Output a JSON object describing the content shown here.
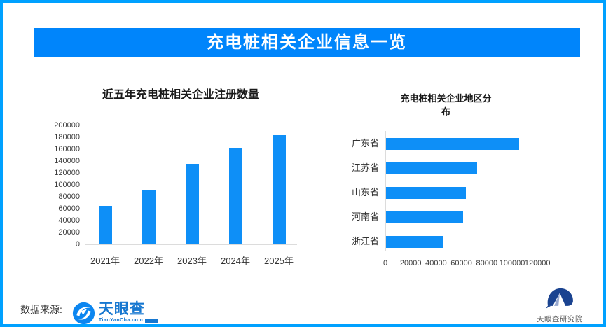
{
  "page": {
    "title": "充电桩相关企业信息一览"
  },
  "colors": {
    "border": "#00A1FF",
    "banner": "#0085FB",
    "bar": "#0E8FF7",
    "axis": "#DCDCDC",
    "tyc_blue": "#1677D0",
    "tyc_circle_blue": "#0C86F0",
    "institute_navy": "#1A4390"
  },
  "chart_data": [
    {
      "type": "bar",
      "orientation": "vertical",
      "title": "近五年充电桩相关企业注册数量",
      "categories": [
        "2021年",
        "2022年",
        "2023年",
        "2024年",
        "2025年"
      ],
      "values": [
        65000,
        90000,
        135000,
        161000,
        184000
      ],
      "ylim": [
        0,
        200000
      ],
      "ytick_step": 20000,
      "grid": false,
      "legend": "none"
    },
    {
      "type": "bar",
      "orientation": "horizontal",
      "title": "充电桩相关企业地区分布",
      "categories": [
        "广东省",
        "江苏省",
        "山东省",
        "河南省",
        "浙江省"
      ],
      "values": [
        105000,
        72000,
        63000,
        61000,
        45000
      ],
      "xlim": [
        0,
        120000
      ],
      "xtick_step": 20000,
      "grid": false,
      "legend": "none"
    }
  ],
  "footer": {
    "source_label": "数据来源:",
    "tianyancha_name": "天眼查",
    "tianyancha_sub": "TianYanCha.com",
    "institute_label": "天眼查研究院"
  }
}
